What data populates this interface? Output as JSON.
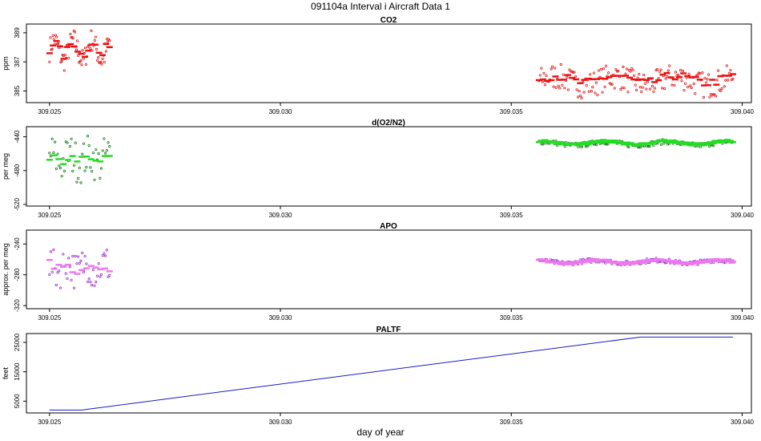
{
  "page_title": "091104a   Interval i Aircraft Data 1",
  "x_axis_label": "day of year",
  "chart_data": [
    {
      "type": "scatter",
      "title": "CO2",
      "ylabel": "ppm",
      "xlim": [
        309.0245,
        309.0402
      ],
      "ylim": [
        384.2,
        389.6
      ],
      "yticks": [
        385,
        387,
        389
      ],
      "xticks": [
        309.025,
        309.03,
        309.035,
        309.04
      ],
      "xtick_labels": [
        "309.025",
        "309.030",
        "309.035",
        "309.040"
      ],
      "series": [
        {
          "style": "points",
          "color": "#e41a1c",
          "segments": [
            {
              "x0": 309.025,
              "x1": 309.0263,
              "center": 387.8,
              "amp": 0.7,
              "noise": 0.8,
              "n": 70
            },
            {
              "x0": 309.0356,
              "x1": 309.0398,
              "center": 385.7,
              "amp": 0.3,
              "noise": 0.9,
              "n": 160
            }
          ]
        },
        {
          "style": "dashes",
          "color": "#ee1111",
          "segments": [
            {
              "x0": 309.025,
              "x1": 309.0263,
              "center": 387.9,
              "amp": 0.45,
              "noise": 0.35,
              "n": 18
            },
            {
              "x0": 309.0356,
              "x1": 309.0398,
              "center": 385.8,
              "amp": 0.25,
              "noise": 0.3,
              "n": 48
            }
          ]
        }
      ]
    },
    {
      "type": "scatter",
      "title": "d(O2/N2)",
      "ylabel": "per meg",
      "xlim": [
        309.0245,
        309.0402
      ],
      "ylim": [
        -522,
        -428
      ],
      "yticks": [
        -520,
        -480,
        -440
      ],
      "xticks": [
        309.025,
        309.03,
        309.035,
        309.04
      ],
      "xtick_labels": [
        "309.025",
        "309.030",
        "309.035",
        "309.040"
      ],
      "series": [
        {
          "style": "points",
          "color": "#1a7a1a",
          "segments": [
            {
              "x0": 309.025,
              "x1": 309.0263,
              "center": -466,
              "amp": 6,
              "noise": 24,
              "n": 45
            },
            {
              "x0": 309.0356,
              "x1": 309.0398,
              "center": -448,
              "amp": 2,
              "noise": 3,
              "n": 150
            }
          ]
        },
        {
          "style": "dashes",
          "color": "#22dd22",
          "segments": [
            {
              "x0": 309.025,
              "x1": 309.0263,
              "center": -467,
              "amp": 4,
              "noise": 7,
              "n": 14
            },
            {
              "x0": 309.0356,
              "x1": 309.0398,
              "center": -447,
              "amp": 2,
              "noise": 1.5,
              "n": 170
            }
          ]
        }
      ]
    },
    {
      "type": "scatter",
      "title": "APO",
      "ylabel": "approx. per meg",
      "xlim": [
        309.0245,
        309.0402
      ],
      "ylim": [
        -324,
        -222
      ],
      "yticks": [
        -320,
        -280,
        -240
      ],
      "xticks": [
        309.025,
        309.03,
        309.035,
        309.04
      ],
      "xtick_labels": [
        "309.025",
        "309.030",
        "309.035",
        "309.040"
      ],
      "series": [
        {
          "style": "points",
          "color": "#9933cc",
          "segments": [
            {
              "x0": 309.025,
              "x1": 309.0263,
              "center": -270,
              "amp": 6,
              "noise": 24,
              "n": 45
            },
            {
              "x0": 309.0356,
              "x1": 309.0398,
              "center": -263,
              "amp": 2,
              "noise": 3,
              "n": 150
            }
          ]
        },
        {
          "style": "dashes",
          "color": "#ee77ee",
          "segments": [
            {
              "x0": 309.025,
              "x1": 309.0263,
              "center": -269,
              "amp": 4,
              "noise": 7,
              "n": 14
            },
            {
              "x0": 309.0356,
              "x1": 309.0398,
              "center": -263,
              "amp": 2,
              "noise": 1.5,
              "n": 170
            }
          ]
        }
      ]
    },
    {
      "type": "line",
      "title": "PALTF",
      "ylabel": "feet",
      "xlim": [
        309.0245,
        309.0402
      ],
      "ylim": [
        1000,
        28000
      ],
      "yticks": [
        5000,
        15000,
        25000
      ],
      "xticks": [
        309.025,
        309.03,
        309.035,
        309.04
      ],
      "xtick_labels": [
        "309.025",
        "309.030",
        "309.035",
        "309.040"
      ],
      "series": [
        {
          "style": "line",
          "color": "#1a1acc",
          "x": [
            309.025,
            309.0257,
            309.0378,
            309.0398
          ],
          "y": [
            2000,
            2000,
            26800,
            26800
          ]
        }
      ]
    }
  ]
}
